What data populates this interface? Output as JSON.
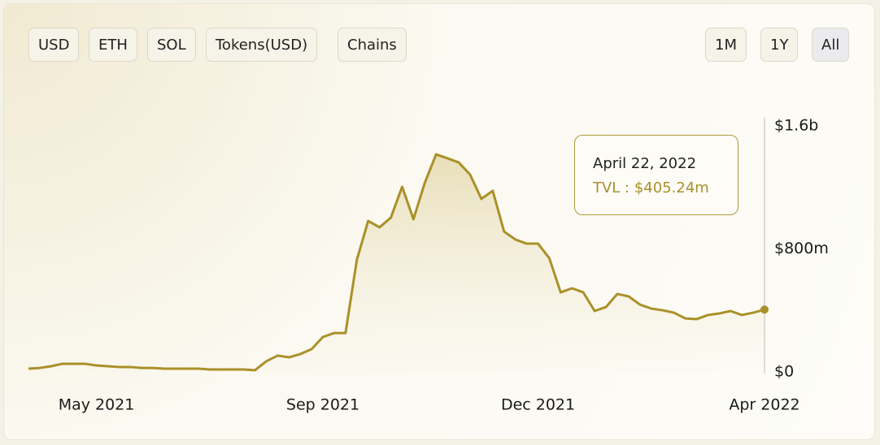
{
  "controls": {
    "left": [
      "USD",
      "ETH",
      "SOL",
      "Tokens(USD)",
      "Chains"
    ],
    "right": [
      "1M",
      "1Y",
      "All"
    ]
  },
  "chart_data": {
    "type": "line",
    "color": "#aa9028",
    "area": true,
    "grid": false,
    "categories": [
      null,
      null,
      null,
      null,
      null,
      null,
      "May 2021",
      null,
      null,
      null,
      null,
      null,
      null,
      null,
      null,
      null,
      null,
      null,
      null,
      null,
      null,
      null,
      null,
      null,
      null,
      null,
      "Sep 2021",
      null,
      null,
      null,
      null,
      null,
      null,
      null,
      null,
      null,
      null,
      null,
      null,
      null,
      null,
      null,
      null,
      null,
      null,
      "Dec 2021",
      null,
      null,
      null,
      null,
      null,
      null,
      null,
      null,
      null,
      null,
      null,
      null,
      null,
      null,
      null,
      null,
      null,
      null,
      null,
      "Apr 2022"
    ],
    "values": [
      21000000,
      26000000,
      37000000,
      53000000,
      53000000,
      53000000,
      42000000,
      37000000,
      32000000,
      32000000,
      26000000,
      26000000,
      21000000,
      21000000,
      21000000,
      21000000,
      16000000,
      16000000,
      16000000,
      16000000,
      11000000,
      69000000,
      106000000,
      95000000,
      116000000,
      148000000,
      227000000,
      253000000,
      253000000,
      729000000,
      982000000,
      940000000,
      1003000000,
      1204000000,
      993000000,
      1230000000,
      1415000000,
      1389000000,
      1362000000,
      1283000000,
      1125000000,
      1178000000,
      913000000,
      861000000,
      834000000,
      834000000,
      739000000,
      517000000,
      544000000,
      517000000,
      396000000,
      422000000,
      507000000,
      491000000,
      438000000,
      412000000,
      401000000,
      385000000,
      348000000,
      343000000,
      370000000,
      380000000,
      396000000,
      370000000,
      385000000,
      405240000
    ],
    "ylim": [
      0,
      1600000000
    ],
    "yticks": [
      {
        "value": 0,
        "label": "$0"
      },
      {
        "value": 800000000,
        "label": "$800m"
      },
      {
        "value": 1600000000,
        "label": "$1.6b"
      }
    ],
    "tooltip": {
      "date": "April 22, 2022",
      "label": "TVL : $405.24m"
    }
  }
}
